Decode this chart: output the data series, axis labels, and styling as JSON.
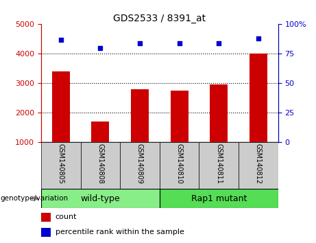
{
  "title": "GDS2533 / 8391_at",
  "samples": [
    "GSM140805",
    "GSM140808",
    "GSM140809",
    "GSM140810",
    "GSM140811",
    "GSM140812"
  ],
  "counts": [
    3400,
    1700,
    2800,
    2750,
    2950,
    4000
  ],
  "percentiles": [
    87,
    80,
    84,
    84,
    84,
    88
  ],
  "bar_color": "#cc0000",
  "dot_color": "#0000cc",
  "left_ylim": [
    1000,
    5000
  ],
  "left_yticks": [
    1000,
    2000,
    3000,
    4000,
    5000
  ],
  "right_ylim": [
    0,
    100
  ],
  "right_yticks": [
    0,
    25,
    50,
    75,
    100
  ],
  "right_yticklabels": [
    "0",
    "25",
    "50",
    "75",
    "100%"
  ],
  "grid_values": [
    2000,
    3000,
    4000
  ],
  "group_labels": [
    "wild-type",
    "Rap1 mutant"
  ],
  "group_colors": [
    "#88ee88",
    "#55dd55"
  ],
  "group_ranges": [
    [
      0,
      3
    ],
    [
      3,
      6
    ]
  ],
  "genotype_label": "genotype/variation",
  "legend_count": "count",
  "legend_percentile": "percentile rank within the sample",
  "bg_color": "#ffffff",
  "tick_area_color": "#cccccc",
  "title_color": "#000000",
  "left_tick_color": "#cc0000",
  "right_tick_color": "#0000cc"
}
